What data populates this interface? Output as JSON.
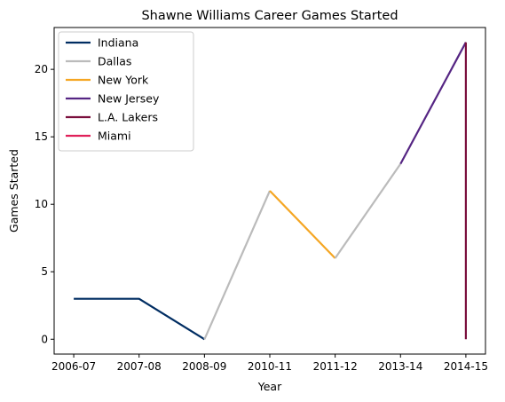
{
  "chart_data": {
    "type": "line",
    "title": "Shawne Williams Career Games Started",
    "xlabel": "Year",
    "ylabel": "Games Started",
    "categories": [
      "2006-07",
      "2007-08",
      "2008-09",
      "2010-11",
      "2011-12",
      "2013-14",
      "2014-15"
    ],
    "yticks": [
      0,
      5,
      10,
      15,
      20
    ],
    "ylim": [
      -1.1,
      23.1
    ],
    "grid": false,
    "legend_position": "top-left",
    "series": [
      {
        "name": "Indiana",
        "color": "#002d62",
        "points": [
          [
            0,
            3
          ],
          [
            1,
            3
          ],
          [
            2,
            0
          ]
        ]
      },
      {
        "name": "Dallas",
        "color": "#bbbbbb",
        "points": [
          [
            2,
            0
          ],
          [
            3,
            11
          ]
        ]
      },
      {
        "name": "New York",
        "color": "#f5a623",
        "points": [
          [
            3,
            11
          ],
          [
            4,
            6
          ]
        ]
      },
      {
        "name": "Dallas",
        "color": "#bbbbbb",
        "legend": false,
        "points": [
          [
            4,
            6
          ],
          [
            5,
            13
          ]
        ]
      },
      {
        "name": "New Jersey",
        "color": "#552583",
        "points": [
          [
            5,
            13
          ],
          [
            6,
            22
          ]
        ]
      },
      {
        "name": "L.A. Lakers",
        "color": "#7a0f3d",
        "points": [
          [
            6,
            22
          ],
          [
            6,
            0
          ]
        ]
      },
      {
        "name": "Miami",
        "color": "#e0215a",
        "points": []
      }
    ]
  }
}
